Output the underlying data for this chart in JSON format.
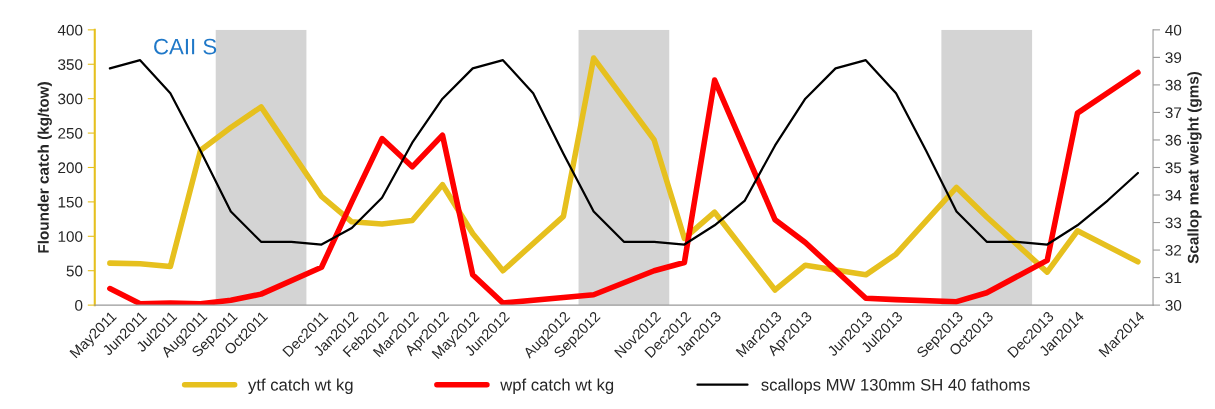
{
  "chart_data": {
    "type": "line",
    "title": "CAII S",
    "ylabel": "Flounder catch (kg/tow)",
    "y2label": "Scallop meat weight (gms)",
    "categories": [
      "May2011",
      "Jun2011",
      "Jul2011",
      "Aug2011",
      "Sep2011",
      "Oct2011",
      null,
      "Dec2011",
      "Jan2012",
      "Feb2012",
      "Mar2012",
      "Apr2012",
      "May2012",
      "Jun2012",
      null,
      "Aug2012",
      "Sep2012",
      null,
      "Nov2012",
      "Dec2012",
      "Jan2013",
      null,
      "Mar2013",
      "Apr2013",
      null,
      "Jun2013",
      "Jul2013",
      null,
      "Sep2013",
      "Oct2013",
      null,
      "Dec2013",
      "Jan2014",
      null,
      "Mar2014"
    ],
    "series": [
      {
        "name": "ytf catch wt kg",
        "color": "#e6c01e",
        "values": [
          61,
          60,
          56,
          225,
          258,
          288,
          null,
          158,
          121,
          118,
          123,
          175,
          104,
          50,
          null,
          129,
          359,
          null,
          240,
          97,
          135,
          null,
          22,
          58,
          null,
          44,
          74,
          null,
          171,
          128,
          null,
          48,
          108,
          null,
          63
        ]
      },
      {
        "name": "wpf catch wt kg",
        "color": "#ff0000",
        "values": [
          24,
          2,
          3,
          2,
          7,
          16,
          null,
          55,
          150,
          242,
          201,
          247,
          44,
          3,
          null,
          11,
          15,
          null,
          50,
          62,
          327,
          null,
          124,
          91,
          null,
          10,
          8,
          null,
          5,
          18,
          null,
          65,
          279,
          null,
          338
        ]
      },
      {
        "name": "scallops MW 130mm SH 40 fathoms",
        "color": "#000000",
        "axis": "y2",
        "values": [
          38.6,
          38.9,
          37.7,
          35.6,
          33.4,
          32.3,
          32.3,
          32.2,
          32.8,
          33.9,
          35.9,
          37.5,
          38.6,
          38.9,
          37.7,
          35.5,
          33.4,
          32.3,
          32.3,
          32.2,
          32.9,
          33.8,
          35.8,
          37.5,
          38.6,
          38.9,
          37.7,
          35.6,
          33.4,
          32.3,
          32.3,
          32.2,
          32.9,
          33.8,
          34.8
        ]
      }
    ],
    "ylim": [
      0,
      400
    ],
    "yticks": [
      0,
      50,
      100,
      150,
      200,
      250,
      300,
      350,
      400
    ],
    "y2lim": [
      30,
      40
    ],
    "y2ticks": [
      30,
      31,
      32,
      33,
      34,
      35,
      36,
      37,
      38,
      39,
      40
    ],
    "bands": [
      {
        "axis": "x",
        "from": "Sep2011",
        "to": "Dec2011",
        "color": "#d4d4d4"
      },
      {
        "axis": "x",
        "from": "Sep2012",
        "to": "Dec2012",
        "color": "#d4d4d4"
      },
      {
        "axis": "x",
        "from": "Sep2013",
        "to": "Dec2013",
        "color": "#d4d4d4"
      }
    ],
    "legend": "bottom",
    "grid": false,
    "marker": "none",
    "line_style": "solid"
  }
}
